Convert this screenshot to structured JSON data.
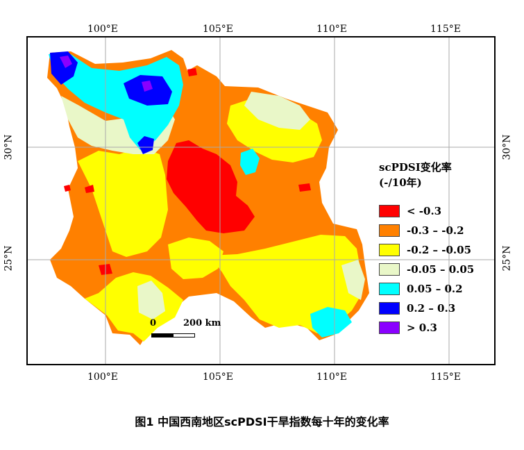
{
  "caption": "图1 中国西南地区scPDSI干旱指数每十年的变化率",
  "axes": {
    "lon_labels": [
      "100°E",
      "105°E",
      "110°E",
      "115°E"
    ],
    "lat_labels": [
      "30°N",
      "25°N"
    ]
  },
  "legend": {
    "title_line1": "scPDSI变化率",
    "title_line2": "(-/10年)",
    "items": [
      {
        "label": "< -0.3",
        "color": "#ff0000"
      },
      {
        "label": "-0.3 – -0.2",
        "color": "#ff8000"
      },
      {
        "label": "-0.2 – -0.05",
        "color": "#ffff00"
      },
      {
        "label": "-0.05 – 0.05",
        "color": "#e9f7c8"
      },
      {
        "label": "0.05 – 0.2",
        "color": "#00ffff"
      },
      {
        "label": "0.2 – 0.3",
        "color": "#0000ff"
      },
      {
        "label": "> 0.3",
        "color": "#8a00ff"
      }
    ]
  },
  "scalebar": {
    "start_label": "0",
    "end_label": "200 km"
  },
  "colors": {
    "red": "#ff0000",
    "orange": "#ff8000",
    "yellow": "#ffff00",
    "pale": "#e9f7c8",
    "cyan": "#00ffff",
    "blue": "#0000ff",
    "purple": "#8a00ff"
  }
}
